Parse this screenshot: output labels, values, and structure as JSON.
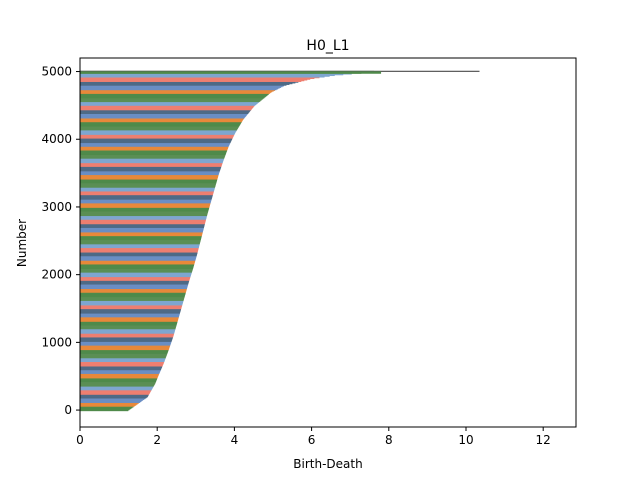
{
  "chart_data": {
    "type": "bar",
    "orientation": "horizontal",
    "title": "H0_L1",
    "xlabel": "Birth-Death",
    "ylabel": "Number",
    "xlim": [
      0,
      12.85
    ],
    "ylim": [
      -250,
      5200
    ],
    "x_ticks": [
      "0",
      "2",
      "4",
      "6",
      "8",
      "10",
      "12"
    ],
    "y_ticks": [
      "0",
      "1000",
      "2000",
      "3000",
      "4000",
      "5000"
    ],
    "grid": false,
    "legend": "none",
    "colors": [
      "#4f8a4a",
      "#e8893a",
      "#6a8ec4",
      "#4e6a86",
      "#ee7f70",
      "#7ea6d0",
      "#5a8f55"
    ],
    "curve_points": [
      {
        "number": 0,
        "value": 1.25
      },
      {
        "number": 100,
        "value": 1.5
      },
      {
        "number": 200,
        "value": 1.75
      },
      {
        "number": 300,
        "value": 1.85
      },
      {
        "number": 400,
        "value": 1.95
      },
      {
        "number": 500,
        "value": 2.02
      },
      {
        "number": 700,
        "value": 2.17
      },
      {
        "number": 900,
        "value": 2.3
      },
      {
        "number": 1100,
        "value": 2.42
      },
      {
        "number": 1300,
        "value": 2.52
      },
      {
        "number": 1500,
        "value": 2.62
      },
      {
        "number": 1700,
        "value": 2.72
      },
      {
        "number": 1900,
        "value": 2.82
      },
      {
        "number": 2100,
        "value": 2.93
      },
      {
        "number": 2300,
        "value": 3.03
      },
      {
        "number": 2500,
        "value": 3.12
      },
      {
        "number": 2700,
        "value": 3.21
      },
      {
        "number": 2900,
        "value": 3.3
      },
      {
        "number": 3100,
        "value": 3.4
      },
      {
        "number": 3300,
        "value": 3.5
      },
      {
        "number": 3500,
        "value": 3.6
      },
      {
        "number": 3700,
        "value": 3.72
      },
      {
        "number": 3900,
        "value": 3.85
      },
      {
        "number": 4100,
        "value": 4.02
      },
      {
        "number": 4300,
        "value": 4.23
      },
      {
        "number": 4500,
        "value": 4.52
      },
      {
        "number": 4700,
        "value": 4.95
      },
      {
        "number": 4800,
        "value": 5.3
      },
      {
        "number": 4900,
        "value": 6.0
      },
      {
        "number": 4950,
        "value": 6.6
      },
      {
        "number": 4980,
        "value": 7.2
      },
      {
        "number": 5000,
        "value": 7.8
      },
      {
        "number": 5002,
        "value": 10.35
      }
    ]
  }
}
